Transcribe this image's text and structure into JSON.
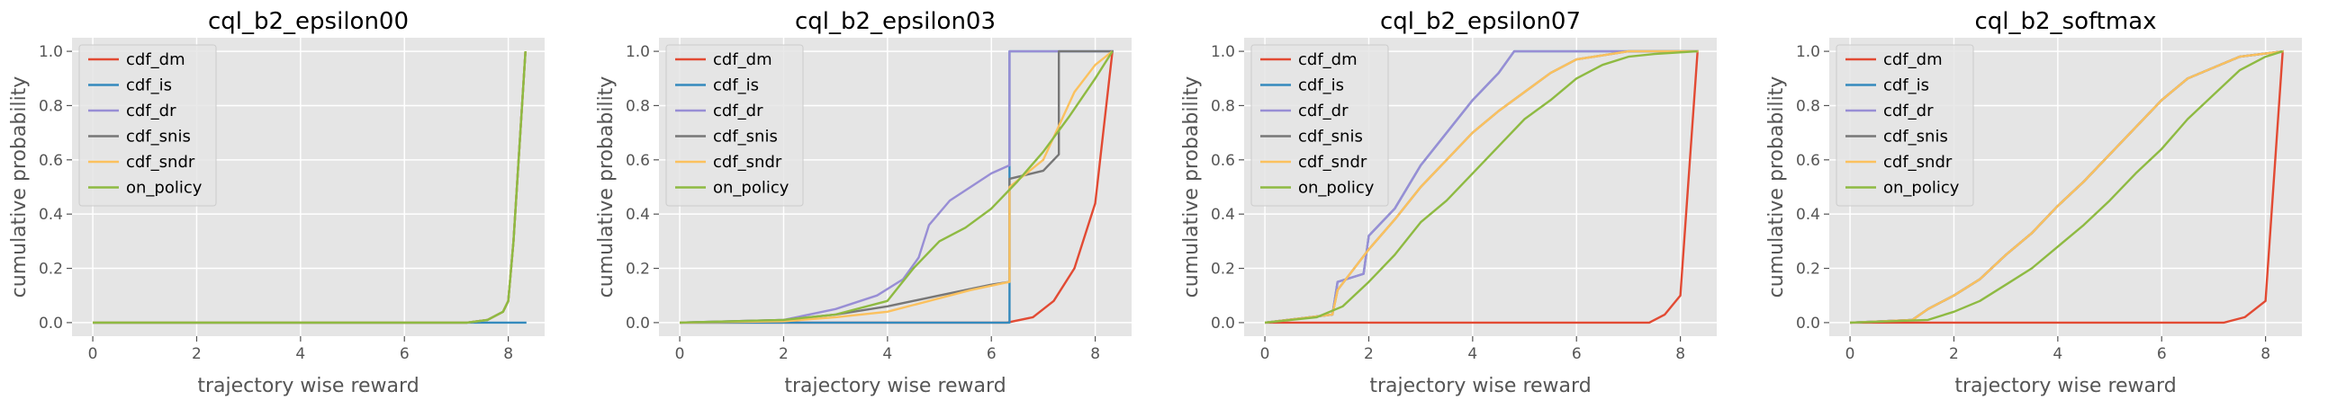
{
  "chart_data": [
    {
      "type": "line",
      "title": "cql_b2_epsilon00",
      "xlabel": "trajectory wise reward",
      "ylabel": "cumulative probability",
      "xlim": [
        -0.4,
        8.7
      ],
      "ylim": [
        -0.05,
        1.05
      ],
      "xticks": [
        0,
        2,
        4,
        6,
        8
      ],
      "yticks": [
        0.0,
        0.2,
        0.4,
        0.6,
        0.8,
        1.0
      ],
      "grid": true,
      "legend": "top-left",
      "series": [
        {
          "name": "cdf_dm",
          "color": "#E24A33",
          "x": [
            0,
            7.2,
            7.6,
            7.9,
            8.0,
            8.1,
            8.33
          ],
          "y": [
            0,
            0,
            0.01,
            0.04,
            0.08,
            0.3,
            1.0
          ]
        },
        {
          "name": "cdf_is",
          "color": "#348ABD",
          "x": [
            0,
            8.35
          ],
          "y": [
            0,
            0
          ]
        },
        {
          "name": "cdf_dr",
          "color": "#988ED5",
          "x": [
            0,
            7.2,
            7.6,
            7.9,
            8.0,
            8.1,
            8.33
          ],
          "y": [
            0,
            0,
            0.01,
            0.04,
            0.08,
            0.3,
            1.0
          ]
        },
        {
          "name": "cdf_snis",
          "color": "#777777",
          "x": [
            0,
            7.2,
            7.6,
            7.9,
            8.0,
            8.1,
            8.33
          ],
          "y": [
            0,
            0,
            0.01,
            0.04,
            0.08,
            0.3,
            1.0
          ]
        },
        {
          "name": "cdf_sndr",
          "color": "#FBC15E",
          "x": [
            0,
            7.2,
            7.6,
            7.9,
            8.0,
            8.1,
            8.33
          ],
          "y": [
            0,
            0,
            0.01,
            0.04,
            0.08,
            0.3,
            1.0
          ]
        },
        {
          "name": "on_policy",
          "color": "#8EBA42",
          "x": [
            0,
            7.2,
            7.6,
            7.9,
            8.0,
            8.1,
            8.33
          ],
          "y": [
            0,
            0,
            0.01,
            0.04,
            0.08,
            0.3,
            1.0
          ]
        }
      ]
    },
    {
      "type": "line",
      "title": "cql_b2_epsilon03",
      "xlabel": "trajectory wise reward",
      "ylabel": "cumulative probability",
      "xlim": [
        -0.4,
        8.7
      ],
      "ylim": [
        -0.05,
        1.05
      ],
      "xticks": [
        0,
        2,
        4,
        6,
        8
      ],
      "yticks": [
        0.0,
        0.2,
        0.4,
        0.6,
        0.8,
        1.0
      ],
      "grid": true,
      "legend": "top-left",
      "series": [
        {
          "name": "cdf_dm",
          "color": "#E24A33",
          "x": [
            0,
            6.3,
            6.8,
            7.2,
            7.6,
            8.0,
            8.33
          ],
          "y": [
            0,
            0,
            0.02,
            0.08,
            0.2,
            0.44,
            1.0
          ]
        },
        {
          "name": "cdf_is",
          "color": "#348ABD",
          "x": [
            0,
            6.35,
            6.35,
            8.35
          ],
          "y": [
            0,
            0,
            1.0,
            1.0
          ]
        },
        {
          "name": "cdf_dr",
          "color": "#988ED5",
          "x": [
            0,
            2.0,
            3.0,
            3.8,
            4.3,
            4.6,
            4.8,
            5.2,
            5.6,
            6.0,
            6.35,
            6.35,
            8.35
          ],
          "y": [
            0,
            0.01,
            0.05,
            0.1,
            0.16,
            0.24,
            0.36,
            0.45,
            0.5,
            0.55,
            0.58,
            1.0,
            1.0
          ]
        },
        {
          "name": "cdf_snis",
          "color": "#777777",
          "x": [
            0,
            2.0,
            3.0,
            4.0,
            5.0,
            6.0,
            6.35,
            6.35,
            7.0,
            7.3,
            7.3,
            8.35
          ],
          "y": [
            0,
            0.01,
            0.03,
            0.06,
            0.1,
            0.14,
            0.15,
            0.53,
            0.56,
            0.62,
            1.0,
            1.0
          ]
        },
        {
          "name": "cdf_sndr",
          "color": "#FBC15E",
          "x": [
            0,
            2.0,
            3.0,
            4.0,
            4.8,
            5.6,
            6.35,
            6.35,
            7.0,
            7.6,
            8.0,
            8.33
          ],
          "y": [
            0,
            0.005,
            0.02,
            0.04,
            0.08,
            0.12,
            0.15,
            0.5,
            0.6,
            0.85,
            0.95,
            1.0
          ]
        },
        {
          "name": "on_policy",
          "color": "#8EBA42",
          "x": [
            0,
            2.0,
            3.0,
            4.0,
            4.5,
            5.0,
            5.5,
            6.0,
            6.5,
            7.0,
            7.5,
            8.0,
            8.33
          ],
          "y": [
            0,
            0.01,
            0.03,
            0.08,
            0.2,
            0.3,
            0.35,
            0.42,
            0.52,
            0.63,
            0.76,
            0.9,
            1.0
          ]
        }
      ]
    },
    {
      "type": "line",
      "title": "cql_b2_epsilon07",
      "xlabel": "trajectory wise reward",
      "ylabel": "cumulative probability",
      "xlim": [
        -0.4,
        8.7
      ],
      "ylim": [
        -0.05,
        1.05
      ],
      "xticks": [
        0,
        2,
        4,
        6,
        8
      ],
      "yticks": [
        0.0,
        0.2,
        0.4,
        0.6,
        0.8,
        1.0
      ],
      "grid": true,
      "legend": "top-left",
      "series": [
        {
          "name": "cdf_dm",
          "color": "#E24A33",
          "x": [
            0,
            7.4,
            7.7,
            8.0,
            8.33
          ],
          "y": [
            0,
            0,
            0.03,
            0.1,
            1.0
          ]
        },
        {
          "name": "cdf_is",
          "color": "#348ABD",
          "x": [
            0,
            1.3,
            1.4,
            1.9,
            2.0,
            2.5,
            3.0,
            3.5,
            4.0,
            4.5,
            4.8,
            5.5,
            8.35
          ],
          "y": [
            0,
            0.03,
            0.15,
            0.18,
            0.32,
            0.42,
            0.58,
            0.7,
            0.82,
            0.92,
            1.0,
            1.0,
            1.0
          ]
        },
        {
          "name": "cdf_dr",
          "color": "#988ED5",
          "x": [
            0,
            1.3,
            1.4,
            1.9,
            2.0,
            2.5,
            3.0,
            3.5,
            4.0,
            4.5,
            4.8,
            5.5,
            8.35
          ],
          "y": [
            0,
            0.03,
            0.15,
            0.18,
            0.32,
            0.42,
            0.58,
            0.7,
            0.82,
            0.92,
            1.0,
            1.0,
            1.0
          ]
        },
        {
          "name": "cdf_snis",
          "color": "#777777",
          "x": [
            0,
            1.3,
            1.4,
            2.0,
            2.5,
            3.0,
            3.5,
            4.0,
            4.5,
            5.0,
            5.5,
            6.0,
            7.0,
            8.35
          ],
          "y": [
            0,
            0.03,
            0.12,
            0.27,
            0.38,
            0.5,
            0.6,
            0.7,
            0.78,
            0.85,
            0.92,
            0.97,
            1.0,
            1.0
          ]
        },
        {
          "name": "cdf_sndr",
          "color": "#FBC15E",
          "x": [
            0,
            1.3,
            1.4,
            2.0,
            2.5,
            3.0,
            3.5,
            4.0,
            4.5,
            5.0,
            5.5,
            6.0,
            7.0,
            8.35
          ],
          "y": [
            0,
            0.03,
            0.12,
            0.27,
            0.38,
            0.5,
            0.6,
            0.7,
            0.78,
            0.85,
            0.92,
            0.97,
            1.0,
            1.0
          ]
        },
        {
          "name": "on_policy",
          "color": "#8EBA42",
          "x": [
            0,
            1.0,
            1.5,
            2.0,
            2.5,
            3.0,
            3.5,
            4.0,
            4.5,
            5.0,
            5.5,
            6.0,
            6.5,
            7.0,
            7.5,
            8.33
          ],
          "y": [
            0,
            0.02,
            0.06,
            0.15,
            0.25,
            0.37,
            0.45,
            0.55,
            0.65,
            0.75,
            0.82,
            0.9,
            0.95,
            0.98,
            0.99,
            1.0
          ]
        }
      ]
    },
    {
      "type": "line",
      "title": "cql_b2_softmax",
      "xlabel": "trajectory wise reward",
      "ylabel": "cumulative probability",
      "xlim": [
        -0.4,
        8.7
      ],
      "ylim": [
        -0.05,
        1.05
      ],
      "xticks": [
        0,
        2,
        4,
        6,
        8
      ],
      "yticks": [
        0.0,
        0.2,
        0.4,
        0.6,
        0.8,
        1.0
      ],
      "grid": true,
      "legend": "top-left",
      "series": [
        {
          "name": "cdf_dm",
          "color": "#E24A33",
          "x": [
            0,
            7.2,
            7.6,
            8.0,
            8.33
          ],
          "y": [
            0,
            0,
            0.02,
            0.08,
            1.0
          ]
        },
        {
          "name": "cdf_is",
          "color": "#348ABD",
          "x": [
            0,
            1.2,
            1.5,
            2.0,
            2.5,
            3.0,
            3.5,
            4.0,
            4.5,
            5.0,
            5.5,
            6.0,
            6.5,
            7.0,
            7.5,
            8.35
          ],
          "y": [
            0,
            0.01,
            0.05,
            0.1,
            0.16,
            0.25,
            0.33,
            0.43,
            0.52,
            0.62,
            0.72,
            0.82,
            0.9,
            0.94,
            0.98,
            1.0
          ]
        },
        {
          "name": "cdf_dr",
          "color": "#988ED5",
          "x": [
            0,
            1.2,
            1.5,
            2.0,
            2.5,
            3.0,
            3.5,
            4.0,
            4.5,
            5.0,
            5.5,
            6.0,
            6.5,
            7.0,
            7.5,
            8.35
          ],
          "y": [
            0,
            0.01,
            0.05,
            0.1,
            0.16,
            0.25,
            0.33,
            0.43,
            0.52,
            0.62,
            0.72,
            0.82,
            0.9,
            0.94,
            0.98,
            1.0
          ]
        },
        {
          "name": "cdf_snis",
          "color": "#777777",
          "x": [
            0,
            1.2,
            1.5,
            2.0,
            2.5,
            3.0,
            3.5,
            4.0,
            4.5,
            5.0,
            5.5,
            6.0,
            6.5,
            7.0,
            7.5,
            8.35
          ],
          "y": [
            0,
            0.01,
            0.05,
            0.1,
            0.16,
            0.25,
            0.33,
            0.43,
            0.52,
            0.62,
            0.72,
            0.82,
            0.9,
            0.94,
            0.98,
            1.0
          ]
        },
        {
          "name": "cdf_sndr",
          "color": "#FBC15E",
          "x": [
            0,
            1.2,
            1.5,
            2.0,
            2.5,
            3.0,
            3.5,
            4.0,
            4.5,
            5.0,
            5.5,
            6.0,
            6.5,
            7.0,
            7.5,
            8.35
          ],
          "y": [
            0,
            0.01,
            0.05,
            0.1,
            0.16,
            0.25,
            0.33,
            0.43,
            0.52,
            0.62,
            0.72,
            0.82,
            0.9,
            0.94,
            0.98,
            1.0
          ]
        },
        {
          "name": "on_policy",
          "color": "#8EBA42",
          "x": [
            0,
            1.5,
            2.0,
            2.5,
            3.0,
            3.5,
            4.0,
            4.5,
            5.0,
            5.5,
            6.0,
            6.5,
            7.0,
            7.5,
            8.0,
            8.33
          ],
          "y": [
            0,
            0.01,
            0.04,
            0.08,
            0.14,
            0.2,
            0.28,
            0.36,
            0.45,
            0.55,
            0.64,
            0.75,
            0.84,
            0.93,
            0.98,
            1.0
          ]
        }
      ]
    }
  ]
}
